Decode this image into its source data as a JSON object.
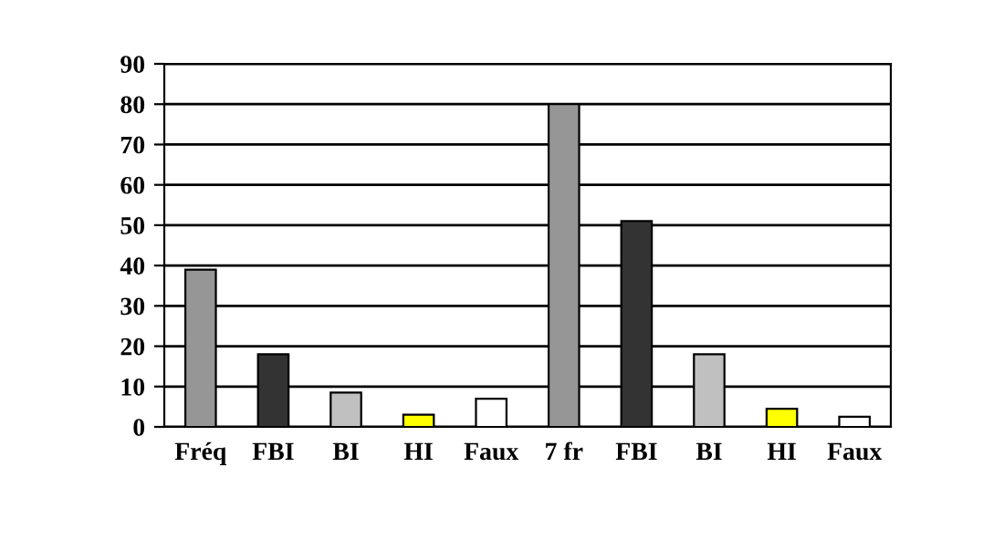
{
  "chart_data": {
    "type": "bar",
    "categories": [
      "Fréq",
      "FBI",
      "BI",
      "HI",
      "Faux",
      "7 fr",
      "FBI",
      "BI",
      "HI",
      "Faux"
    ],
    "values": [
      39,
      18,
      8.5,
      3,
      7,
      80,
      51,
      18,
      4.5,
      2.5
    ],
    "colors": [
      "#969696",
      "#333333",
      "#c0c0c0",
      "#ffff00",
      "#ffffff",
      "#969696",
      "#333333",
      "#c0c0c0",
      "#ffff00",
      "#ffffff"
    ],
    "ylim": [
      0,
      90
    ],
    "yticks": [
      0,
      10,
      20,
      30,
      40,
      50,
      60,
      70,
      80,
      90
    ],
    "grid": "y"
  }
}
